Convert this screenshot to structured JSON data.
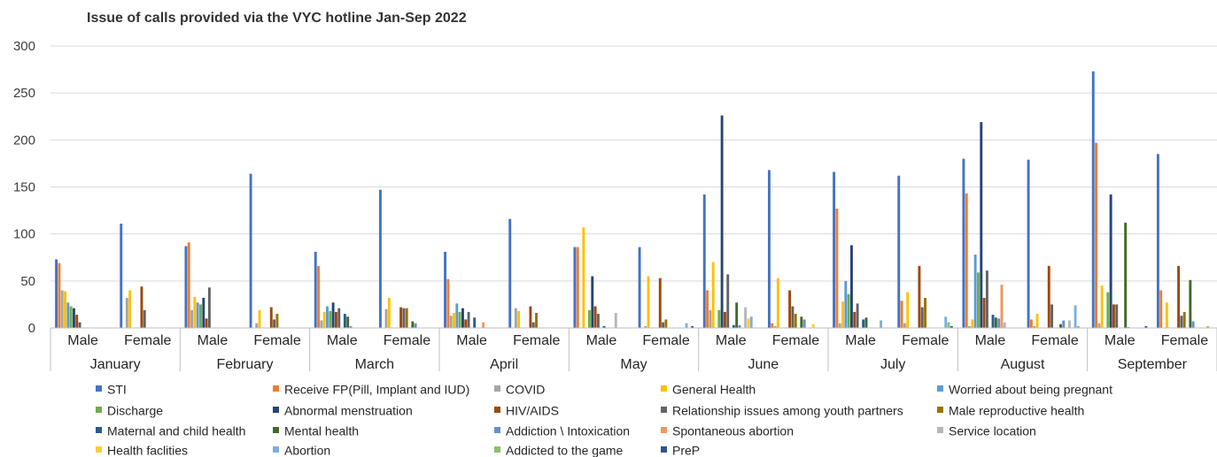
{
  "chart_data": {
    "type": "bar",
    "title": "Issue of calls provided via the VYC hotline Jan-Sep 2022",
    "xlabel": "",
    "ylabel": "",
    "ylim": [
      0,
      300
    ],
    "y_ticks": [
      0,
      50,
      100,
      150,
      200,
      250,
      300
    ],
    "grid": true,
    "legend_position": "bottom",
    "months": [
      "January",
      "February",
      "March",
      "April",
      "May",
      "June",
      "July",
      "August",
      "September"
    ],
    "genders": [
      "Male",
      "Female"
    ],
    "categories": [
      "January - Male",
      "January - Female",
      "February - Male",
      "February - Female",
      "March - Male",
      "March - Female",
      "April - Male",
      "April - Female",
      "May - Male",
      "May - Female",
      "June - Male",
      "June - Female",
      "July - Male",
      "July - Female",
      "August - Male",
      "August - Female",
      "September - Male",
      "September - Female"
    ],
    "series": [
      {
        "name": "STI",
        "color": "#4472C4",
        "values": [
          73,
          111,
          87,
          164,
          81,
          147,
          81,
          116,
          86,
          86,
          142,
          168,
          166,
          162,
          180,
          179,
          273,
          185
        ]
      },
      {
        "name": "Receive FP(Pill, Implant and IUD)",
        "color": "#ED7D31",
        "values": [
          69,
          0,
          91,
          0,
          66,
          0,
          52,
          0,
          86,
          0,
          40,
          5,
          127,
          29,
          143,
          9,
          197,
          40
        ]
      },
      {
        "name": "COVID",
        "color": "#A5A5A5",
        "values": [
          40,
          32,
          19,
          5,
          8,
          20,
          13,
          21,
          0,
          2,
          19,
          2,
          5,
          5,
          2,
          2,
          5,
          0
        ]
      },
      {
        "name": "General Health",
        "color": "#FFC000",
        "values": [
          39,
          40,
          33,
          19,
          17,
          32,
          16,
          18,
          107,
          55,
          70,
          53,
          28,
          38,
          9,
          15,
          45,
          27
        ]
      },
      {
        "name": "Worried about being pregnant",
        "color": "#5B9BD5",
        "values": [
          27,
          0,
          27,
          0,
          23,
          0,
          26,
          0,
          0,
          0,
          0,
          0,
          50,
          0,
          78,
          0,
          0,
          0
        ]
      },
      {
        "name": "Discharge",
        "color": "#70AD47",
        "values": [
          23,
          0,
          25,
          0,
          18,
          0,
          17,
          0,
          19,
          0,
          19,
          0,
          36,
          0,
          59,
          0,
          38,
          0
        ]
      },
      {
        "name": "Abnormal menstruation",
        "color": "#264478",
        "values": [
          21,
          0,
          32,
          0,
          27,
          0,
          21,
          0,
          55,
          0,
          226,
          0,
          88,
          0,
          219,
          0,
          142,
          0
        ]
      },
      {
        "name": "HIV/AIDS",
        "color": "#9E480E",
        "values": [
          14,
          44,
          10,
          22,
          17,
          22,
          9,
          23,
          23,
          53,
          17,
          40,
          17,
          66,
          32,
          66,
          25,
          66
        ]
      },
      {
        "name": "Relationship issues among youth partners",
        "color": "#636363",
        "values": [
          6,
          19,
          43,
          9,
          21,
          21,
          17,
          6,
          15,
          6,
          57,
          23,
          26,
          22,
          61,
          25,
          25,
          13
        ]
      },
      {
        "name": "Male reproductive health",
        "color": "#997300",
        "values": [
          0,
          0,
          0,
          15,
          0,
          21,
          0,
          16,
          0,
          9,
          0,
          15,
          0,
          32,
          0,
          0,
          0,
          17
        ]
      },
      {
        "name": "Maternal and child health",
        "color": "#255E91",
        "values": [
          0,
          0,
          0,
          0,
          15,
          0,
          11,
          0,
          2,
          0,
          3,
          0,
          9,
          0,
          14,
          0,
          0,
          0
        ]
      },
      {
        "name": "Mental health",
        "color": "#43682B",
        "values": [
          0,
          0,
          0,
          0,
          12,
          7,
          0,
          0,
          0,
          0,
          27,
          12,
          11,
          0,
          11,
          4,
          112,
          51
        ]
      },
      {
        "name": "Addiction \\ Intoxication",
        "color": "#698ED0",
        "values": [
          0,
          0,
          0,
          0,
          2,
          5,
          0,
          0,
          0,
          0,
          3,
          9,
          0,
          0,
          10,
          8,
          1,
          7
        ]
      },
      {
        "name": "Spontaneous abortion",
        "color": "#F1975A",
        "values": [
          0,
          0,
          0,
          0,
          0,
          0,
          6,
          0,
          0,
          0,
          0,
          0,
          0,
          0,
          46,
          0,
          0,
          0
        ]
      },
      {
        "name": "Service location",
        "color": "#B7B7B7",
        "values": [
          0,
          0,
          0,
          0,
          0,
          0,
          0,
          0,
          16,
          0,
          22,
          0,
          0,
          0,
          6,
          8,
          0,
          0
        ]
      },
      {
        "name": "Health faclities",
        "color": "#FFCD33",
        "values": [
          0,
          0,
          0,
          0,
          0,
          0,
          0,
          0,
          0,
          0,
          10,
          4,
          0,
          0,
          0,
          0,
          0,
          0
        ]
      },
      {
        "name": "Abortion",
        "color": "#7CAFDD",
        "values": [
          0,
          0,
          0,
          0,
          0,
          0,
          0,
          0,
          0,
          5,
          12,
          0,
          8,
          12,
          0,
          24,
          0,
          0
        ]
      },
      {
        "name": "Addicted to the game",
        "color": "#8CC168",
        "values": [
          0,
          0,
          0,
          0,
          0,
          0,
          0,
          0,
          0,
          0,
          0,
          0,
          0,
          6,
          0,
          2,
          0,
          2
        ]
      },
      {
        "name": "PreP",
        "color": "#2F5597",
        "values": [
          0,
          0,
          0,
          0,
          0,
          0,
          0,
          0,
          0,
          2,
          0,
          0,
          0,
          2,
          0,
          0,
          2,
          0
        ]
      }
    ]
  }
}
